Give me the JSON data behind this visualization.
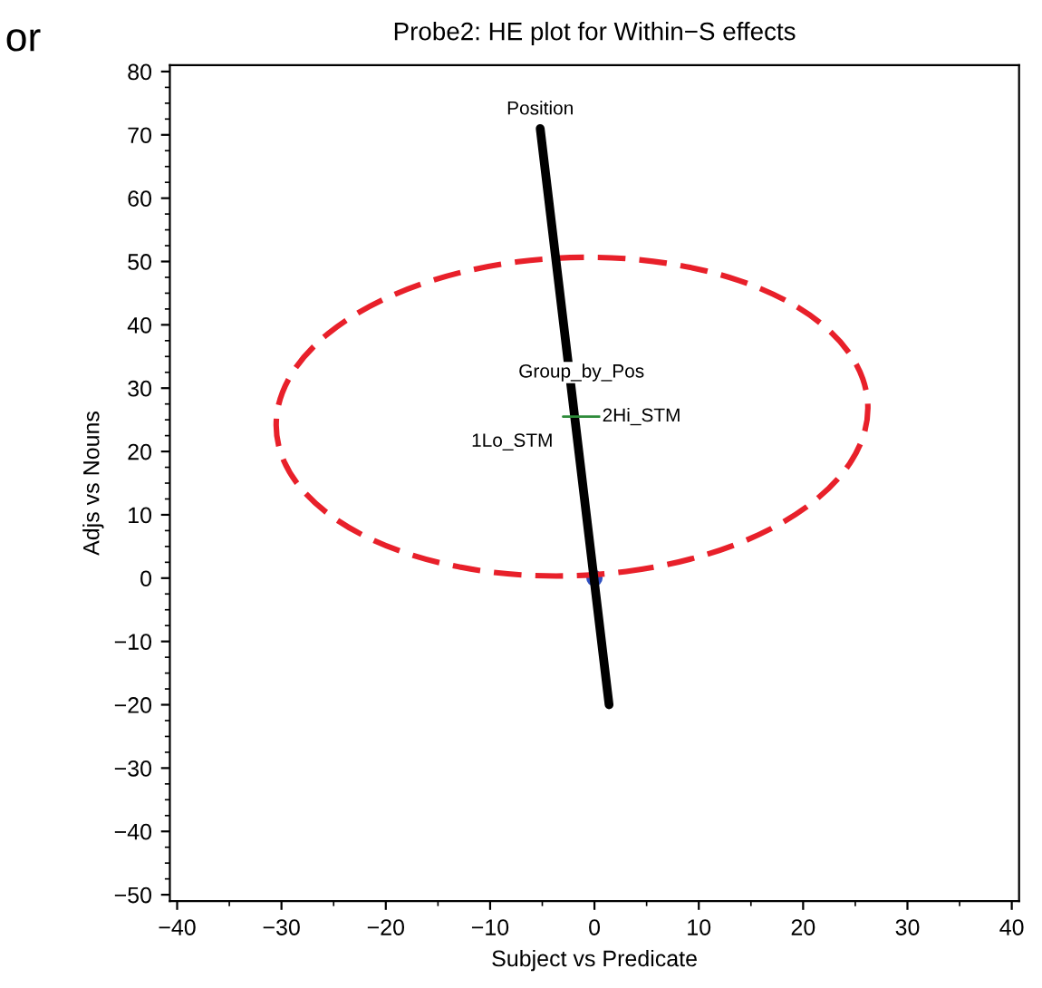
{
  "chart_data": {
    "type": "line",
    "title": "Probe2: HE plot for Within−S effects",
    "xlabel": "Subject vs Predicate",
    "ylabel": "Adjs vs Nouns",
    "xlim": [
      -40.7,
      40.7
    ],
    "ylim": [
      -51,
      81
    ],
    "xticks": [
      -40,
      -30,
      -20,
      -10,
      0,
      10,
      20,
      30,
      40
    ],
    "yticks": [
      -50,
      -40,
      -30,
      -20,
      -10,
      0,
      10,
      20,
      30,
      40,
      50,
      60,
      70,
      80
    ],
    "grid": false,
    "legend": false,
    "series": [
      {
        "color": "#000000",
        "line_style": "solid",
        "marker": "none",
        "x": [
          -5.2,
          1.4
        ],
        "values": [
          71,
          -20
        ]
      },
      {
        "color": "#2e8b3a",
        "line_style": "solid",
        "marker": "none",
        "x": [
          -3,
          0.5
        ],
        "values": [
          25.5,
          25.5
        ]
      },
      {
        "type": "scatter",
        "color": "#3050c0",
        "marker": "circle",
        "x": [
          0
        ],
        "values": [
          0
        ]
      }
    ],
    "annotations": [
      "or",
      {
        "text": "Position",
        "x": -5.2,
        "y": 71
      },
      {
        "text": "Group_by_Pos",
        "x": -1.25,
        "y": 25.5
      },
      {
        "text": "2Hi_STM",
        "x": 0.5,
        "y": 25.5
      },
      {
        "text": "1Lo_STM",
        "x": -3,
        "y": 25.5
      }
    ]
  }
}
